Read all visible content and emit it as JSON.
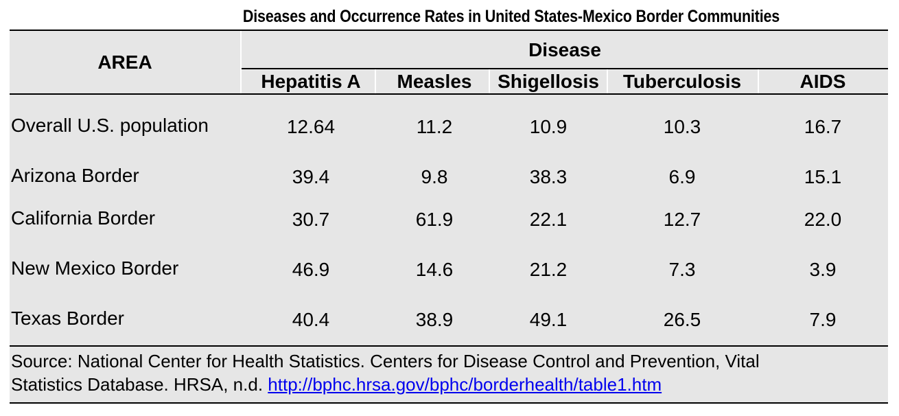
{
  "chart_data": {
    "type": "table",
    "title": "Diseases and Occurrence Rates in United States-Mexico Border Communities",
    "row_header": "AREA",
    "group_header": "Disease",
    "columns": [
      "Hepatitis A",
      "Measles",
      "Shigellosis",
      "Tuberculosis",
      "AIDS"
    ],
    "rows": [
      {
        "label": "Overall U.S. population",
        "values": [
          "12.64",
          "11.2",
          "10.9",
          "10.3",
          "16.7"
        ]
      },
      {
        "label": "Arizona Border",
        "values": [
          "39.4",
          "9.8",
          "38.3",
          "6.9",
          "15.1"
        ]
      },
      {
        "label": "California Border",
        "values": [
          "30.7",
          "61.9",
          "22.1",
          "12.7",
          "22.0"
        ]
      },
      {
        "label": "New Mexico Border",
        "values": [
          "46.9",
          "14.6",
          "21.2",
          "7.3",
          "3.9"
        ]
      },
      {
        "label": "Texas Border",
        "values": [
          "40.4",
          "38.9",
          "49.1",
          "26.5",
          "7.9"
        ]
      }
    ],
    "source_text": "Source:  National Center for Health Statistics. Centers for Disease Control and Prevention, Vital",
    "source_text2": "Statistics Database.  HRSA, n.d. ",
    "source_link": "http://bphc.hrsa.gov/bphc/borderhealth/table1.htm"
  }
}
